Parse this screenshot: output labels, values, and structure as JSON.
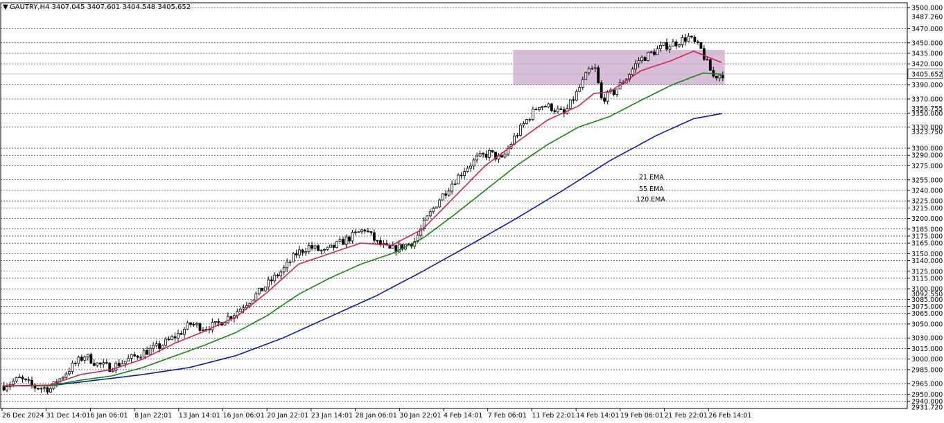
{
  "header": {
    "symbol_line": "GAUTRY,H4  3407.045 3407.601 3404.548 3405.652"
  },
  "colors": {
    "background": "#ffffff",
    "grid": "#000000",
    "candle": "#000000",
    "ema21": "#d6204f",
    "ema55": "#11860f",
    "ema120": "#0a1aa6",
    "zone_fill": "#c9a8cc",
    "current_label_bg": "#ffffff",
    "axis_label_bg": "#0a0a3a"
  },
  "chart_data": {
    "type": "candlestick",
    "ylim": [
      2931.72,
      3500
    ],
    "grid": true,
    "y_ticks": [
      3500,
      3470,
      3450,
      3435,
      3420,
      3390,
      3370,
      3350,
      3330,
      3300,
      3290,
      3275,
      3255,
      3240,
      3225,
      3215,
      3200,
      3185,
      3175,
      3165,
      3150,
      3140,
      3125,
      3115,
      3100,
      3085,
      3075,
      3065,
      3050,
      3030,
      3015,
      3000,
      2985,
      2965,
      2950,
      2940
    ],
    "y_tick_labels": [
      "3500.000",
      "3470.000",
      "3450.000",
      "3435.000",
      "3420.000",
      "3390.000",
      "3370.000",
      "3350.000",
      "3330.000",
      "3300.000",
      "3290.000",
      "3275.000",
      "3255.000",
      "3240.000",
      "3225.000",
      "3215.000",
      "3200.000",
      "3185.000",
      "3175.000",
      "3165.000",
      "3150.000",
      "3140.000",
      "3125.000",
      "3115.000",
      "3100.000",
      "3085.000",
      "3075.000",
      "3065.000",
      "3050.000",
      "3030.000",
      "3015.000",
      "3000.000",
      "2985.000",
      "2965.000",
      "2950.000",
      "2940.000"
    ],
    "extra_y_labels": [
      {
        "value": 3487.26,
        "label": "3487.260"
      },
      {
        "value": 3356.755,
        "label": "3356.755"
      },
      {
        "value": 3323.75,
        "label": "3323.750"
      },
      {
        "value": 3092.55,
        "label": "3092.550"
      },
      {
        "value": 2931.72,
        "label": "2931.720"
      }
    ],
    "current_price": {
      "value": 3405.652,
      "label": "3405.652"
    },
    "x_tick_labels": [
      "26 Dec 2024",
      "31 Dec 14:01",
      "6 Jan 06:01",
      "8 Jan 22:01",
      "13 Jan 14:01",
      "16 Jan 06:01",
      "20 Jan 22:01",
      "23 Jan 14:01",
      "28 Jan 06:01",
      "30 Jan 22:01",
      "4 Feb 14:01",
      "7 Feb 06:01",
      "11 Feb 22:01",
      "14 Feb 14:01",
      "19 Feb 06:01",
      "21 Feb 22:01",
      "26 Feb 14:01"
    ],
    "bar_count": 232,
    "price_path": [
      [
        0,
        2962
      ],
      [
        5,
        2972
      ],
      [
        10,
        2960
      ],
      [
        15,
        2958
      ],
      [
        18,
        2972
      ],
      [
        22,
        2990
      ],
      [
        26,
        3005
      ],
      [
        30,
        2993
      ],
      [
        34,
        2988
      ],
      [
        38,
        2995
      ],
      [
        44,
        3008
      ],
      [
        50,
        3018
      ],
      [
        56,
        3035
      ],
      [
        60,
        3050
      ],
      [
        64,
        3045
      ],
      [
        68,
        3048
      ],
      [
        74,
        3065
      ],
      [
        78,
        3080
      ],
      [
        82,
        3095
      ],
      [
        86,
        3112
      ],
      [
        90,
        3128
      ],
      [
        94,
        3150
      ],
      [
        98,
        3160
      ],
      [
        103,
        3152
      ],
      [
        108,
        3165
      ],
      [
        112,
        3175
      ],
      [
        116,
        3185
      ],
      [
        120,
        3165
      ],
      [
        124,
        3155
      ],
      [
        128,
        3160
      ],
      [
        132,
        3168
      ],
      [
        136,
        3200
      ],
      [
        140,
        3228
      ],
      [
        144,
        3250
      ],
      [
        148,
        3270
      ],
      [
        152,
        3285
      ],
      [
        156,
        3293
      ],
      [
        160,
        3283
      ],
      [
        164,
        3315
      ],
      [
        168,
        3340
      ],
      [
        172,
        3362
      ],
      [
        176,
        3358
      ],
      [
        180,
        3348
      ],
      [
        184,
        3378
      ],
      [
        188,
        3410
      ],
      [
        190,
        3412
      ],
      [
        192,
        3370
      ],
      [
        196,
        3380
      ],
      [
        200,
        3400
      ],
      [
        204,
        3425
      ],
      [
        208,
        3435
      ],
      [
        212,
        3445
      ],
      [
        216,
        3450
      ],
      [
        220,
        3458
      ],
      [
        224,
        3440
      ],
      [
        226,
        3420
      ],
      [
        228,
        3402
      ],
      [
        232,
        3407
      ]
    ],
    "ema21_path": [
      [
        0,
        2962
      ],
      [
        15,
        2963
      ],
      [
        25,
        2978
      ],
      [
        35,
        2985
      ],
      [
        45,
        3000
      ],
      [
        55,
        3022
      ],
      [
        65,
        3040
      ],
      [
        75,
        3060
      ],
      [
        85,
        3095
      ],
      [
        95,
        3135
      ],
      [
        105,
        3150
      ],
      [
        115,
        3165
      ],
      [
        125,
        3162
      ],
      [
        135,
        3185
      ],
      [
        145,
        3230
      ],
      [
        155,
        3275
      ],
      [
        165,
        3308
      ],
      [
        175,
        3340
      ],
      [
        185,
        3360
      ],
      [
        190,
        3378
      ],
      [
        195,
        3380
      ],
      [
        205,
        3410
      ],
      [
        215,
        3425
      ],
      [
        222,
        3438
      ],
      [
        232,
        3420
      ]
    ],
    "ema55_path": [
      [
        0,
        2962
      ],
      [
        15,
        2962
      ],
      [
        25,
        2970
      ],
      [
        35,
        2976
      ],
      [
        45,
        2988
      ],
      [
        55,
        3004
      ],
      [
        65,
        3020
      ],
      [
        75,
        3038
      ],
      [
        85,
        3062
      ],
      [
        95,
        3092
      ],
      [
        105,
        3115
      ],
      [
        115,
        3135
      ],
      [
        125,
        3150
      ],
      [
        135,
        3172
      ],
      [
        145,
        3205
      ],
      [
        155,
        3240
      ],
      [
        165,
        3275
      ],
      [
        175,
        3305
      ],
      [
        185,
        3330
      ],
      [
        195,
        3345
      ],
      [
        205,
        3368
      ],
      [
        215,
        3390
      ],
      [
        225,
        3407
      ],
      [
        232,
        3405
      ]
    ],
    "ema120_path": [
      [
        0,
        2962
      ],
      [
        15,
        2962
      ],
      [
        30,
        2970
      ],
      [
        45,
        2978
      ],
      [
        60,
        2988
      ],
      [
        75,
        3005
      ],
      [
        90,
        3030
      ],
      [
        105,
        3060
      ],
      [
        120,
        3090
      ],
      [
        135,
        3125
      ],
      [
        150,
        3162
      ],
      [
        165,
        3200
      ],
      [
        180,
        3240
      ],
      [
        195,
        3282
      ],
      [
        210,
        3318
      ],
      [
        222,
        3342
      ],
      [
        232,
        3350
      ]
    ],
    "series": [
      {
        "name": "21 EMA",
        "color": "#d6204f"
      },
      {
        "name": "55 EMA",
        "color": "#11860f"
      },
      {
        "name": "120 EMA",
        "color": "#0a1aa6"
      }
    ],
    "zone": {
      "x_from_bar": 164,
      "x_to_bar": 232,
      "y_low": 3390,
      "y_high": 3440
    }
  }
}
